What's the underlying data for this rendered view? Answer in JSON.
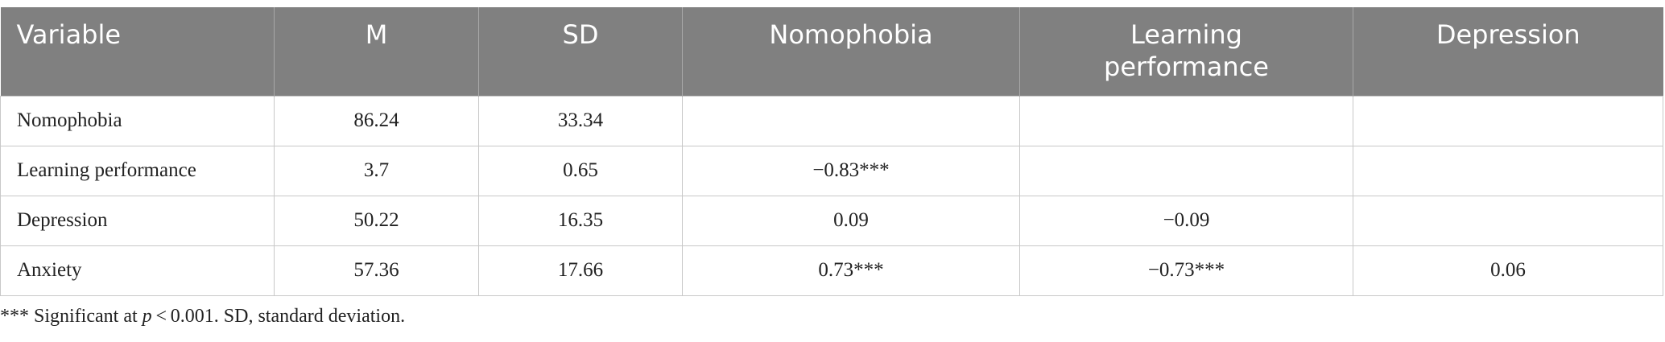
{
  "table": {
    "header": [
      "Variable",
      "M",
      "SD",
      "Nomophobia",
      "Learning performance",
      "Depression"
    ],
    "rows": [
      [
        "Nomophobia",
        "86.24",
        "33.34",
        null,
        null,
        null
      ],
      [
        "Learning performance",
        "3.7",
        "0.65",
        "−0.83***",
        null,
        null
      ],
      [
        "Depression",
        "50.22",
        "16.35",
        "0.09",
        "−0.09",
        null
      ],
      [
        "Anxiety",
        "57.36",
        "17.66",
        "0.73***",
        "−0.73***",
        "0.06"
      ]
    ]
  },
  "footnote": {
    "prefix": "*** Significant at ",
    "italic": "p",
    "rest": " < 0.001. SD, standard deviation."
  }
}
